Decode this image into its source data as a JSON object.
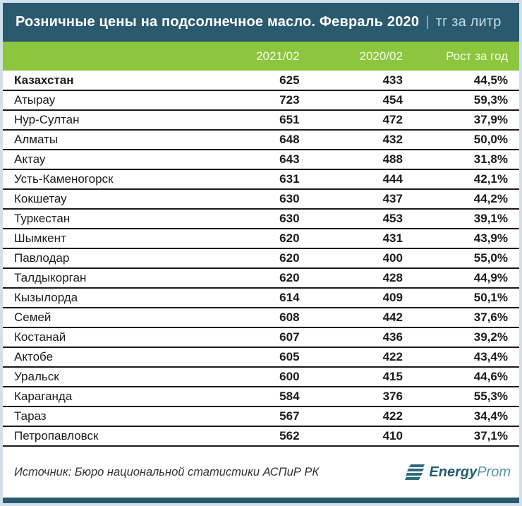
{
  "colors": {
    "header_bg": "#2a5a6e",
    "accent_green": "#8cc63e",
    "row_line": "#1b1b1b",
    "page_border": "#d3e0ea",
    "title_suffix": "#c3dde7",
    "logo_dark": "#235d6f",
    "logo_light": "#5c93a5"
  },
  "title": {
    "main": "Розничные цены на подсолнечное масло. Февраль 2020",
    "separator": "|",
    "suffix": "тг за литр"
  },
  "table": {
    "columns": [
      "2021/02",
      "2020/02",
      "Рост за год"
    ],
    "rows": [
      {
        "region": "Казахстан",
        "price_2021_02": "625",
        "price_2020_02": "433",
        "growth_year": "44,5%",
        "is_total": true
      },
      {
        "region": "Атырау",
        "price_2021_02": "723",
        "price_2020_02": "454",
        "growth_year": "59,3%",
        "is_total": false
      },
      {
        "region": "Нур-Султан",
        "price_2021_02": "651",
        "price_2020_02": "472",
        "growth_year": "37,9%",
        "is_total": false
      },
      {
        "region": "Алматы",
        "price_2021_02": "648",
        "price_2020_02": "432",
        "growth_year": "50,0%",
        "is_total": false
      },
      {
        "region": "Актау",
        "price_2021_02": "643",
        "price_2020_02": "488",
        "growth_year": "31,8%",
        "is_total": false
      },
      {
        "region": "Усть-Каменогорск",
        "price_2021_02": "631",
        "price_2020_02": "444",
        "growth_year": "42,1%",
        "is_total": false
      },
      {
        "region": "Кокшетау",
        "price_2021_02": "630",
        "price_2020_02": "437",
        "growth_year": "44,2%",
        "is_total": false
      },
      {
        "region": "Туркестан",
        "price_2021_02": "630",
        "price_2020_02": "453",
        "growth_year": "39,1%",
        "is_total": false
      },
      {
        "region": "Шымкент",
        "price_2021_02": "620",
        "price_2020_02": "431",
        "growth_year": "43,9%",
        "is_total": false
      },
      {
        "region": "Павлодар",
        "price_2021_02": "620",
        "price_2020_02": "400",
        "growth_year": "55,0%",
        "is_total": false
      },
      {
        "region": "Талдыкорган",
        "price_2021_02": "620",
        "price_2020_02": "428",
        "growth_year": "44,9%",
        "is_total": false
      },
      {
        "region": "Кызылорда",
        "price_2021_02": "614",
        "price_2020_02": "409",
        "growth_year": "50,1%",
        "is_total": false
      },
      {
        "region": "Семей",
        "price_2021_02": "608",
        "price_2020_02": "442",
        "growth_year": "37,6%",
        "is_total": false
      },
      {
        "region": "Костанай",
        "price_2021_02": "607",
        "price_2020_02": "436",
        "growth_year": "39,2%",
        "is_total": false
      },
      {
        "region": "Актобе",
        "price_2021_02": "605",
        "price_2020_02": "422",
        "growth_year": "43,4%",
        "is_total": false
      },
      {
        "region": "Уральск",
        "price_2021_02": "600",
        "price_2020_02": "415",
        "growth_year": "44,6%",
        "is_total": false
      },
      {
        "region": "Караганда",
        "price_2021_02": "584",
        "price_2020_02": "376",
        "growth_year": "55,3%",
        "is_total": false
      },
      {
        "region": "Тараз",
        "price_2021_02": "567",
        "price_2020_02": "422",
        "growth_year": "34,4%",
        "is_total": false
      },
      {
        "region": "Петропавловск",
        "price_2021_02": "562",
        "price_2020_02": "410",
        "growth_year": "37,1%",
        "is_total": false
      }
    ]
  },
  "footer": {
    "source": "Источник: Бюро национальной статистики АСПиР РК",
    "logo": {
      "bold_part": "Energy",
      "light_part": "Prom"
    }
  },
  "chart_data": {
    "type": "table",
    "title": "Розничные цены на подсолнечное масло. Февраль 2020 | тг за литр",
    "unit": "тг за литр",
    "categories": [
      "Казахстан",
      "Атырау",
      "Нур-Султан",
      "Алматы",
      "Актау",
      "Усть-Каменогорск",
      "Кокшетау",
      "Туркестан",
      "Шымкент",
      "Павлодар",
      "Талдыкорган",
      "Кызылорда",
      "Семей",
      "Костанай",
      "Актобе",
      "Уральск",
      "Караганда",
      "Тараз",
      "Петропавловск"
    ],
    "series": [
      {
        "name": "2021/02",
        "values": [
          625,
          723,
          651,
          648,
          643,
          631,
          630,
          630,
          620,
          620,
          620,
          614,
          608,
          607,
          605,
          600,
          584,
          567,
          562
        ]
      },
      {
        "name": "2020/02",
        "values": [
          433,
          454,
          472,
          432,
          488,
          444,
          437,
          453,
          431,
          400,
          428,
          409,
          442,
          436,
          422,
          415,
          376,
          422,
          410
        ]
      },
      {
        "name": "Рост за год",
        "values": [
          "44,5%",
          "59,3%",
          "37,9%",
          "50,0%",
          "31,8%",
          "42,1%",
          "44,2%",
          "39,1%",
          "43,9%",
          "55,0%",
          "44,9%",
          "50,1%",
          "37,6%",
          "39,2%",
          "43,4%",
          "44,6%",
          "55,3%",
          "34,4%",
          "37,1%"
        ]
      }
    ],
    "source": "Источник: Бюро национальной статистики АСПиР РК"
  }
}
